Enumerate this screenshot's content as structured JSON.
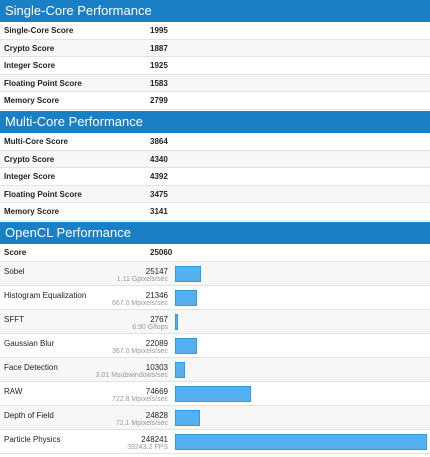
{
  "sections": [
    {
      "title": "Single-Core Performance",
      "rows": [
        {
          "label": "Single-Core Score",
          "value": 1995
        },
        {
          "label": "Crypto Score",
          "value": 1887
        },
        {
          "label": "Integer Score",
          "value": 1925
        },
        {
          "label": "Floating Point Score",
          "value": 1583
        },
        {
          "label": "Memory Score",
          "value": 2799
        }
      ]
    },
    {
      "title": "Multi-Core Performance",
      "rows": [
        {
          "label": "Multi-Core Score",
          "value": 3864
        },
        {
          "label": "Crypto Score",
          "value": 4340
        },
        {
          "label": "Integer Score",
          "value": 4392
        },
        {
          "label": "Floating Point Score",
          "value": 3475
        },
        {
          "label": "Memory Score",
          "value": 3141
        }
      ]
    },
    {
      "title": "OpenCL Performance",
      "rows": [
        {
          "label": "Score",
          "value": 25060
        },
        {
          "label": "Sobel",
          "value": 25147,
          "detail": "1.11 Gpixels/sec"
        },
        {
          "label": "Histogram Equalization",
          "value": 21346,
          "detail": "667.0 Mpixels/sec"
        },
        {
          "label": "SFFT",
          "value": 2767,
          "detail": "6.90 Gflops"
        },
        {
          "label": "Gaussian Blur",
          "value": 22089,
          "detail": "367.0 Mpixels/sec"
        },
        {
          "label": "Face Detection",
          "value": 10303,
          "detail": "3.01 Msubwindows/sec"
        },
        {
          "label": "RAW",
          "value": 74669,
          "detail": "722.8 Mpixels/sec"
        },
        {
          "label": "Depth of Field",
          "value": 24828,
          "detail": "72.1 Mpixels/sec"
        },
        {
          "label": "Particle Physics",
          "value": 248241,
          "detail": "39243.2 FPS"
        }
      ]
    }
  ]
}
